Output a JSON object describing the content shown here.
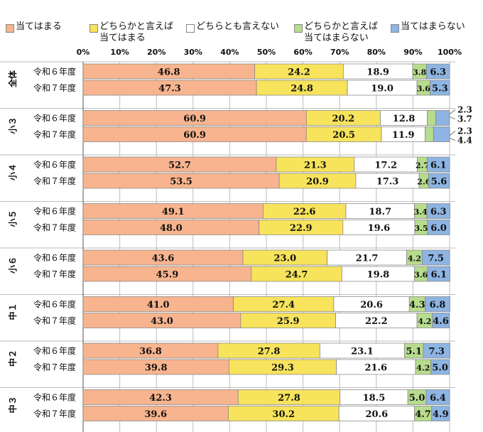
{
  "chart_data": {
    "type": "bar",
    "orientation": "horizontal",
    "stacked": true,
    "normalized": true,
    "title": "",
    "xlabel": "",
    "ylabel": "",
    "xlim": [
      0,
      100
    ],
    "x_ticks": [
      "0%",
      "10%",
      "20%",
      "30%",
      "40%",
      "50%",
      "60%",
      "70%",
      "80%",
      "90%",
      "100%"
    ],
    "grid": true,
    "legend_position": "top",
    "series": [
      {
        "name": "当てはまる",
        "color": "#f7b48e"
      },
      {
        "name": "どちらかと言えば\n当てはまる",
        "color": "#f7e35c"
      },
      {
        "name": "どちらとも言えない",
        "color": "#ffffff"
      },
      {
        "name": "どちらかと言えば\n当てはまらない",
        "color": "#b7dc8d"
      },
      {
        "name": "当てはまらない",
        "color": "#8db4e2"
      }
    ],
    "groups": [
      {
        "label": "全体",
        "rows": [
          {
            "label": "令和６年度",
            "values": [
              46.8,
              24.2,
              18.9,
              3.8,
              6.3
            ]
          },
          {
            "label": "令和７年度",
            "values": [
              47.3,
              24.8,
              19.0,
              3.6,
              5.3
            ]
          }
        ]
      },
      {
        "label": "小３",
        "rows": [
          {
            "label": "令和６年度",
            "values": [
              60.9,
              20.2,
              12.8,
              2.3,
              3.7
            ]
          },
          {
            "label": "令和７年度",
            "values": [
              60.9,
              20.5,
              11.9,
              2.3,
              4.4
            ]
          }
        ]
      },
      {
        "label": "小４",
        "rows": [
          {
            "label": "令和６年度",
            "values": [
              52.7,
              21.3,
              17.2,
              2.7,
              6.1
            ]
          },
          {
            "label": "令和７年度",
            "values": [
              53.5,
              20.9,
              17.3,
              2.6,
              5.6
            ]
          }
        ]
      },
      {
        "label": "小５",
        "rows": [
          {
            "label": "令和６年度",
            "values": [
              49.1,
              22.6,
              18.7,
              3.4,
              6.3
            ]
          },
          {
            "label": "令和７年度",
            "values": [
              48.0,
              22.9,
              19.6,
              3.5,
              6.0
            ]
          }
        ]
      },
      {
        "label": "小６",
        "rows": [
          {
            "label": "令和６年度",
            "values": [
              43.6,
              23.0,
              21.7,
              4.2,
              7.5
            ]
          },
          {
            "label": "令和７年度",
            "values": [
              45.9,
              24.7,
              19.8,
              3.6,
              6.1
            ]
          }
        ]
      },
      {
        "label": "中１",
        "rows": [
          {
            "label": "令和６年度",
            "values": [
              41.0,
              27.4,
              20.6,
              4.3,
              6.8
            ]
          },
          {
            "label": "令和７年度",
            "values": [
              43.0,
              25.9,
              22.2,
              4.2,
              4.6
            ]
          }
        ]
      },
      {
        "label": "中２",
        "rows": [
          {
            "label": "令和６年度",
            "values": [
              36.8,
              27.8,
              23.1,
              5.1,
              7.3
            ]
          },
          {
            "label": "令和７年度",
            "values": [
              39.8,
              29.3,
              21.6,
              4.2,
              5.0
            ]
          }
        ]
      },
      {
        "label": "中３",
        "rows": [
          {
            "label": "令和６年度",
            "values": [
              42.3,
              27.8,
              18.5,
              5.0,
              6.4
            ]
          },
          {
            "label": "令和７年度",
            "values": [
              39.6,
              30.2,
              20.6,
              4.7,
              4.9
            ]
          }
        ]
      }
    ]
  }
}
